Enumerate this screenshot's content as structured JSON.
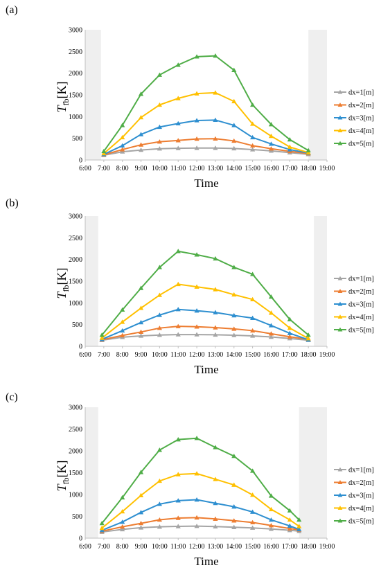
{
  "chart_data": [
    {
      "type": "line",
      "panel_label": "(a)",
      "xlabel": "Time",
      "ylabel_main": "T",
      "ylabel_sub": "fb",
      "ylabel_unit": "[K]",
      "ylim": [
        0,
        3000
      ],
      "yticks": [
        "0",
        "500",
        "1000",
        "1500",
        "2000",
        "2500",
        "3000"
      ],
      "xticks": [
        "6:00",
        "7:00",
        "8:00",
        "9:00",
        "10:00",
        "11:00",
        "12:00",
        "13:00",
        "14:00",
        "15:00",
        "16:00",
        "17:00",
        "18:00",
        "19:00"
      ],
      "shaded_ranges": [
        [
          6.0,
          6.85
        ],
        [
          18.0,
          19.0
        ]
      ],
      "x": [
        7,
        8,
        9,
        10,
        11,
        12,
        13,
        14,
        15,
        16,
        17,
        18
      ],
      "series": [
        {
          "name": "dx=1[m]",
          "color": "#a5a5a5",
          "values": [
            110,
            190,
            230,
            260,
            270,
            275,
            275,
            265,
            240,
            210,
            170,
            130
          ]
        },
        {
          "name": "dx=2[m]",
          "color": "#ed7d31",
          "values": [
            120,
            240,
            350,
            420,
            450,
            485,
            490,
            440,
            330,
            260,
            200,
            150
          ]
        },
        {
          "name": "dx=3[m]",
          "color": "#2e8fd0",
          "values": [
            130,
            330,
            590,
            760,
            840,
            910,
            920,
            800,
            520,
            370,
            240,
            160
          ]
        },
        {
          "name": "dx=4[m]",
          "color": "#ffc000",
          "values": [
            150,
            520,
            980,
            1270,
            1420,
            1530,
            1550,
            1350,
            830,
            550,
            300,
            170
          ]
        },
        {
          "name": "dx=5[m]",
          "color": "#4fad47",
          "values": [
            200,
            800,
            1520,
            1960,
            2190,
            2380,
            2400,
            2070,
            1270,
            820,
            470,
            220
          ]
        }
      ]
    },
    {
      "type": "line",
      "panel_label": "(b)",
      "xlabel": "Time",
      "ylabel_main": "T",
      "ylabel_sub": "fb",
      "ylabel_unit": "[K]",
      "ylim": [
        0,
        3000
      ],
      "yticks": [
        "0",
        "500",
        "1000",
        "1500",
        "2000",
        "2500",
        "3000"
      ],
      "xticks": [
        "6:00",
        "7:00",
        "8:00",
        "9:00",
        "10:00",
        "11:00",
        "12:00",
        "13:00",
        "14:00",
        "15:00",
        "16:00",
        "17:00",
        "18:00",
        "19:00"
      ],
      "shaded_ranges": [
        [
          6.0,
          6.7
        ],
        [
          18.3,
          19.0
        ]
      ],
      "x": [
        6.9,
        8,
        9,
        10,
        11,
        12,
        13,
        14,
        15,
        16,
        17,
        18
      ],
      "series": [
        {
          "name": "dx=1[m]",
          "color": "#a5a5a5",
          "values": [
            140,
            210,
            240,
            260,
            270,
            270,
            265,
            255,
            240,
            215,
            180,
            140
          ]
        },
        {
          "name": "dx=2[m]",
          "color": "#ed7d31",
          "values": [
            150,
            250,
            330,
            420,
            460,
            450,
            430,
            400,
            360,
            290,
            220,
            160
          ]
        },
        {
          "name": "dx=3[m]",
          "color": "#2e8fd0",
          "values": [
            160,
            360,
            550,
            720,
            850,
            820,
            780,
            710,
            650,
            480,
            300,
            150
          ]
        },
        {
          "name": "dx=4[m]",
          "color": "#ffc000",
          "values": [
            190,
            560,
            880,
            1180,
            1430,
            1370,
            1310,
            1190,
            1080,
            770,
            420,
            180
          ]
        },
        {
          "name": "dx=5[m]",
          "color": "#4fad47",
          "values": [
            260,
            840,
            1340,
            1820,
            2190,
            2110,
            2020,
            1820,
            1660,
            1140,
            620,
            260
          ]
        }
      ]
    },
    {
      "type": "line",
      "panel_label": "(c)",
      "xlabel": "Time",
      "ylabel_main": "T",
      "ylabel_sub": "fb",
      "ylabel_unit": "[K]",
      "ylim": [
        0,
        3000
      ],
      "yticks": [
        "0",
        "500",
        "1000",
        "1500",
        "2000",
        "2500",
        "3000"
      ],
      "xticks": [
        "6:00",
        "7:00",
        "8:00",
        "9:00",
        "10:00",
        "11:00",
        "12:00",
        "13:00",
        "14:00",
        "15:00",
        "16:00",
        "17:00",
        "18:00",
        "19:00"
      ],
      "shaded_ranges": [
        [
          6.0,
          6.7
        ],
        [
          17.5,
          19.0
        ]
      ],
      "x": [
        6.9,
        8,
        9,
        10,
        11,
        12,
        13,
        14,
        15,
        16,
        17,
        17.5
      ],
      "series": [
        {
          "name": "dx=1[m]",
          "color": "#a5a5a5",
          "values": [
            140,
            200,
            240,
            260,
            270,
            275,
            265,
            250,
            235,
            210,
            180,
            160
          ]
        },
        {
          "name": "dx=2[m]",
          "color": "#ed7d31",
          "values": [
            160,
            260,
            340,
            420,
            460,
            470,
            440,
            400,
            360,
            290,
            220,
            190
          ]
        },
        {
          "name": "dx=3[m]",
          "color": "#2e8fd0",
          "values": [
            180,
            370,
            590,
            780,
            860,
            880,
            800,
            720,
            600,
            420,
            280,
            200
          ]
        },
        {
          "name": "dx=4[m]",
          "color": "#ffc000",
          "values": [
            230,
            610,
            980,
            1310,
            1460,
            1480,
            1350,
            1220,
            990,
            660,
            420,
            270
          ]
        },
        {
          "name": "dx=5[m]",
          "color": "#4fad47",
          "values": [
            340,
            930,
            1510,
            2020,
            2260,
            2290,
            2080,
            1880,
            1540,
            970,
            630,
            420
          ]
        }
      ]
    }
  ]
}
